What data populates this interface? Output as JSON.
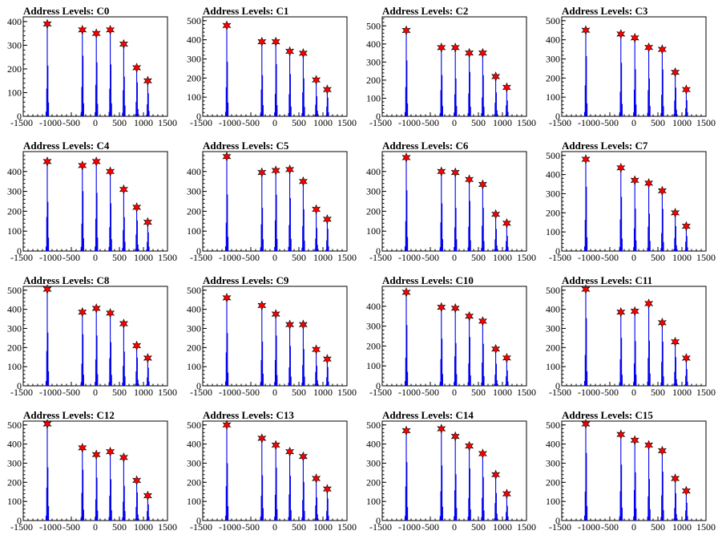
{
  "chart_data": [
    {
      "type": "histogram",
      "title": "Address Levels: C0",
      "xlim": [
        -1500,
        1500
      ],
      "ylim": [
        0,
        420
      ],
      "xticks": [
        -1500,
        -1000,
        -500,
        0,
        500,
        1000,
        1500
      ],
      "yticks": [
        0,
        100,
        200,
        300,
        400
      ],
      "peaks": [
        {
          "x": -1000,
          "y": 390
        },
        {
          "x": -270,
          "y": 365
        },
        {
          "x": 20,
          "y": 350
        },
        {
          "x": 310,
          "y": 365
        },
        {
          "x": 590,
          "y": 305
        },
        {
          "x": 860,
          "y": 205
        },
        {
          "x": 1090,
          "y": 150
        }
      ]
    },
    {
      "type": "histogram",
      "title": "Address Levels: C1",
      "xlim": [
        -1500,
        1500
      ],
      "ylim": [
        0,
        520
      ],
      "xticks": [
        -1500,
        -1000,
        -500,
        0,
        500,
        1000,
        1500
      ],
      "yticks": [
        0,
        100,
        200,
        300,
        400,
        500
      ],
      "peaks": [
        {
          "x": -1000,
          "y": 475
        },
        {
          "x": -270,
          "y": 390
        },
        {
          "x": 20,
          "y": 390
        },
        {
          "x": 310,
          "y": 340
        },
        {
          "x": 590,
          "y": 330
        },
        {
          "x": 860,
          "y": 190
        },
        {
          "x": 1090,
          "y": 140
        }
      ]
    },
    {
      "type": "histogram",
      "title": "Address Levels: C2",
      "xlim": [
        -1500,
        1500
      ],
      "ylim": [
        0,
        550
      ],
      "xticks": [
        -1500,
        -1000,
        -500,
        0,
        500,
        1000,
        1500
      ],
      "yticks": [
        0,
        100,
        200,
        300,
        400,
        500
      ],
      "peaks": [
        {
          "x": -1000,
          "y": 475
        },
        {
          "x": -270,
          "y": 380
        },
        {
          "x": 20,
          "y": 380
        },
        {
          "x": 310,
          "y": 350
        },
        {
          "x": 590,
          "y": 350
        },
        {
          "x": 860,
          "y": 220
        },
        {
          "x": 1090,
          "y": 160
        }
      ]
    },
    {
      "type": "histogram",
      "title": "Address Levels: C3",
      "xlim": [
        -1500,
        1500
      ],
      "ylim": [
        0,
        520
      ],
      "xticks": [
        -1500,
        -1000,
        -500,
        0,
        500,
        1000,
        1500
      ],
      "yticks": [
        0,
        100,
        200,
        300,
        400,
        500
      ],
      "peaks": [
        {
          "x": -1000,
          "y": 450
        },
        {
          "x": -270,
          "y": 430
        },
        {
          "x": 20,
          "y": 410
        },
        {
          "x": 310,
          "y": 360
        },
        {
          "x": 590,
          "y": 350
        },
        {
          "x": 860,
          "y": 230
        },
        {
          "x": 1090,
          "y": 140
        }
      ]
    },
    {
      "type": "histogram",
      "title": "Address Levels: C4",
      "xlim": [
        -1500,
        1500
      ],
      "ylim": [
        0,
        500
      ],
      "xticks": [
        -1500,
        -1000,
        -500,
        0,
        500,
        1000,
        1500
      ],
      "yticks": [
        0,
        100,
        200,
        300,
        400
      ],
      "peaks": [
        {
          "x": -1000,
          "y": 450
        },
        {
          "x": -270,
          "y": 430
        },
        {
          "x": 20,
          "y": 450
        },
        {
          "x": 310,
          "y": 400
        },
        {
          "x": 590,
          "y": 310
        },
        {
          "x": 860,
          "y": 220
        },
        {
          "x": 1090,
          "y": 145
        }
      ]
    },
    {
      "type": "histogram",
      "title": "Address Levels: C5",
      "xlim": [
        -1500,
        1500
      ],
      "ylim": [
        0,
        500
      ],
      "xticks": [
        -1500,
        -1000,
        -500,
        0,
        500,
        1000,
        1500
      ],
      "yticks": [
        0,
        100,
        200,
        300,
        400
      ],
      "peaks": [
        {
          "x": -1000,
          "y": 475
        },
        {
          "x": -270,
          "y": 395
        },
        {
          "x": 20,
          "y": 405
        },
        {
          "x": 310,
          "y": 410
        },
        {
          "x": 590,
          "y": 350
        },
        {
          "x": 860,
          "y": 210
        },
        {
          "x": 1090,
          "y": 160
        }
      ]
    },
    {
      "type": "histogram",
      "title": "Address Levels: C6",
      "xlim": [
        -1500,
        1500
      ],
      "ylim": [
        0,
        500
      ],
      "xticks": [
        -1500,
        -1000,
        -500,
        0,
        500,
        1000,
        1500
      ],
      "yticks": [
        0,
        100,
        200,
        300,
        400
      ],
      "peaks": [
        {
          "x": -1000,
          "y": 470
        },
        {
          "x": -270,
          "y": 400
        },
        {
          "x": 20,
          "y": 395
        },
        {
          "x": 310,
          "y": 360
        },
        {
          "x": 590,
          "y": 335
        },
        {
          "x": 860,
          "y": 185
        },
        {
          "x": 1090,
          "y": 140
        }
      ]
    },
    {
      "type": "histogram",
      "title": "Address Levels: C7",
      "xlim": [
        -1500,
        1500
      ],
      "ylim": [
        0,
        520
      ],
      "xticks": [
        -1500,
        -1000,
        -500,
        0,
        500,
        1000,
        1500
      ],
      "yticks": [
        0,
        100,
        200,
        300,
        400,
        500
      ],
      "peaks": [
        {
          "x": -1000,
          "y": 480
        },
        {
          "x": -270,
          "y": 435
        },
        {
          "x": 20,
          "y": 370
        },
        {
          "x": 310,
          "y": 355
        },
        {
          "x": 590,
          "y": 315
        },
        {
          "x": 860,
          "y": 200
        },
        {
          "x": 1090,
          "y": 130
        }
      ]
    },
    {
      "type": "histogram",
      "title": "Address Levels: C8",
      "xlim": [
        -1500,
        1500
      ],
      "ylim": [
        0,
        520
      ],
      "xticks": [
        -1500,
        -1000,
        -500,
        0,
        500,
        1000,
        1500
      ],
      "yticks": [
        0,
        100,
        200,
        300,
        400,
        500
      ],
      "peaks": [
        {
          "x": -1000,
          "y": 505
        },
        {
          "x": -270,
          "y": 385
        },
        {
          "x": 20,
          "y": 405
        },
        {
          "x": 310,
          "y": 380
        },
        {
          "x": 590,
          "y": 325
        },
        {
          "x": 860,
          "y": 210
        },
        {
          "x": 1090,
          "y": 145
        }
      ]
    },
    {
      "type": "histogram",
      "title": "Address Levels: C9",
      "xlim": [
        -1500,
        1500
      ],
      "ylim": [
        0,
        520
      ],
      "xticks": [
        -1500,
        -1000,
        -500,
        0,
        500,
        1000,
        1500
      ],
      "yticks": [
        0,
        100,
        200,
        300,
        400,
        500
      ],
      "peaks": [
        {
          "x": -1000,
          "y": 460
        },
        {
          "x": -270,
          "y": 420
        },
        {
          "x": 20,
          "y": 375
        },
        {
          "x": 310,
          "y": 320
        },
        {
          "x": 590,
          "y": 320
        },
        {
          "x": 860,
          "y": 190
        },
        {
          "x": 1090,
          "y": 140
        }
      ]
    },
    {
      "type": "histogram",
      "title": "Address Levels: C10",
      "xlim": [
        -1500,
        1500
      ],
      "ylim": [
        0,
        500
      ],
      "xticks": [
        -1500,
        -1000,
        -500,
        0,
        500,
        1000,
        1500
      ],
      "yticks": [
        0,
        100,
        200,
        300,
        400
      ],
      "peaks": [
        {
          "x": -1000,
          "y": 470
        },
        {
          "x": -270,
          "y": 395
        },
        {
          "x": 20,
          "y": 390
        },
        {
          "x": 310,
          "y": 350
        },
        {
          "x": 590,
          "y": 325
        },
        {
          "x": 860,
          "y": 185
        },
        {
          "x": 1090,
          "y": 140
        }
      ]
    },
    {
      "type": "histogram",
      "title": "Address Levels: C11",
      "xlim": [
        -1500,
        1500
      ],
      "ylim": [
        0,
        520
      ],
      "xticks": [
        -1500,
        -1000,
        -500,
        0,
        500,
        1000,
        1500
      ],
      "yticks": [
        0,
        100,
        200,
        300,
        400,
        500
      ],
      "peaks": [
        {
          "x": -1000,
          "y": 505
        },
        {
          "x": -270,
          "y": 385
        },
        {
          "x": 20,
          "y": 390
        },
        {
          "x": 310,
          "y": 430
        },
        {
          "x": 590,
          "y": 330
        },
        {
          "x": 860,
          "y": 230
        },
        {
          "x": 1090,
          "y": 145
        }
      ]
    },
    {
      "type": "histogram",
      "title": "Address Levels: C12",
      "xlim": [
        -1500,
        1500
      ],
      "ylim": [
        0,
        520
      ],
      "xticks": [
        -1500,
        -1000,
        -500,
        0,
        500,
        1000,
        1500
      ],
      "yticks": [
        0,
        100,
        200,
        300,
        400,
        500
      ],
      "peaks": [
        {
          "x": -1000,
          "y": 505
        },
        {
          "x": -270,
          "y": 380
        },
        {
          "x": 20,
          "y": 345
        },
        {
          "x": 310,
          "y": 360
        },
        {
          "x": 590,
          "y": 330
        },
        {
          "x": 860,
          "y": 210
        },
        {
          "x": 1090,
          "y": 130
        }
      ]
    },
    {
      "type": "histogram",
      "title": "Address Levels: C13",
      "xlim": [
        -1500,
        1500
      ],
      "ylim": [
        0,
        520
      ],
      "xticks": [
        -1500,
        -1000,
        -500,
        0,
        500,
        1000,
        1500
      ],
      "yticks": [
        0,
        100,
        200,
        300,
        400,
        500
      ],
      "peaks": [
        {
          "x": -1000,
          "y": 500
        },
        {
          "x": -270,
          "y": 430
        },
        {
          "x": 20,
          "y": 395
        },
        {
          "x": 310,
          "y": 360
        },
        {
          "x": 590,
          "y": 335
        },
        {
          "x": 860,
          "y": 220
        },
        {
          "x": 1090,
          "y": 165
        }
      ]
    },
    {
      "type": "histogram",
      "title": "Address Levels: C14",
      "xlim": [
        -1500,
        1500
      ],
      "ylim": [
        0,
        520
      ],
      "xticks": [
        -1500,
        -1000,
        -500,
        0,
        500,
        1000,
        1500
      ],
      "yticks": [
        0,
        100,
        200,
        300,
        400,
        500
      ],
      "peaks": [
        {
          "x": -1000,
          "y": 470
        },
        {
          "x": -270,
          "y": 480
        },
        {
          "x": 20,
          "y": 440
        },
        {
          "x": 310,
          "y": 390
        },
        {
          "x": 590,
          "y": 350
        },
        {
          "x": 860,
          "y": 240
        },
        {
          "x": 1090,
          "y": 140
        }
      ]
    },
    {
      "type": "histogram",
      "title": "Address Levels: C15",
      "xlim": [
        -1500,
        1500
      ],
      "ylim": [
        0,
        520
      ],
      "xticks": [
        -1500,
        -1000,
        -500,
        0,
        500,
        1000,
        1500
      ],
      "yticks": [
        0,
        100,
        200,
        300,
        400,
        500
      ],
      "peaks": [
        {
          "x": -1000,
          "y": 505
        },
        {
          "x": -270,
          "y": 450
        },
        {
          "x": 20,
          "y": 420
        },
        {
          "x": 310,
          "y": 395
        },
        {
          "x": 590,
          "y": 365
        },
        {
          "x": 860,
          "y": 220
        },
        {
          "x": 1090,
          "y": 155
        }
      ]
    }
  ],
  "colors": {
    "histogram": "#0000ee",
    "marker": "#ff0000",
    "marker_outline": "#000000",
    "axis": "#000000"
  }
}
